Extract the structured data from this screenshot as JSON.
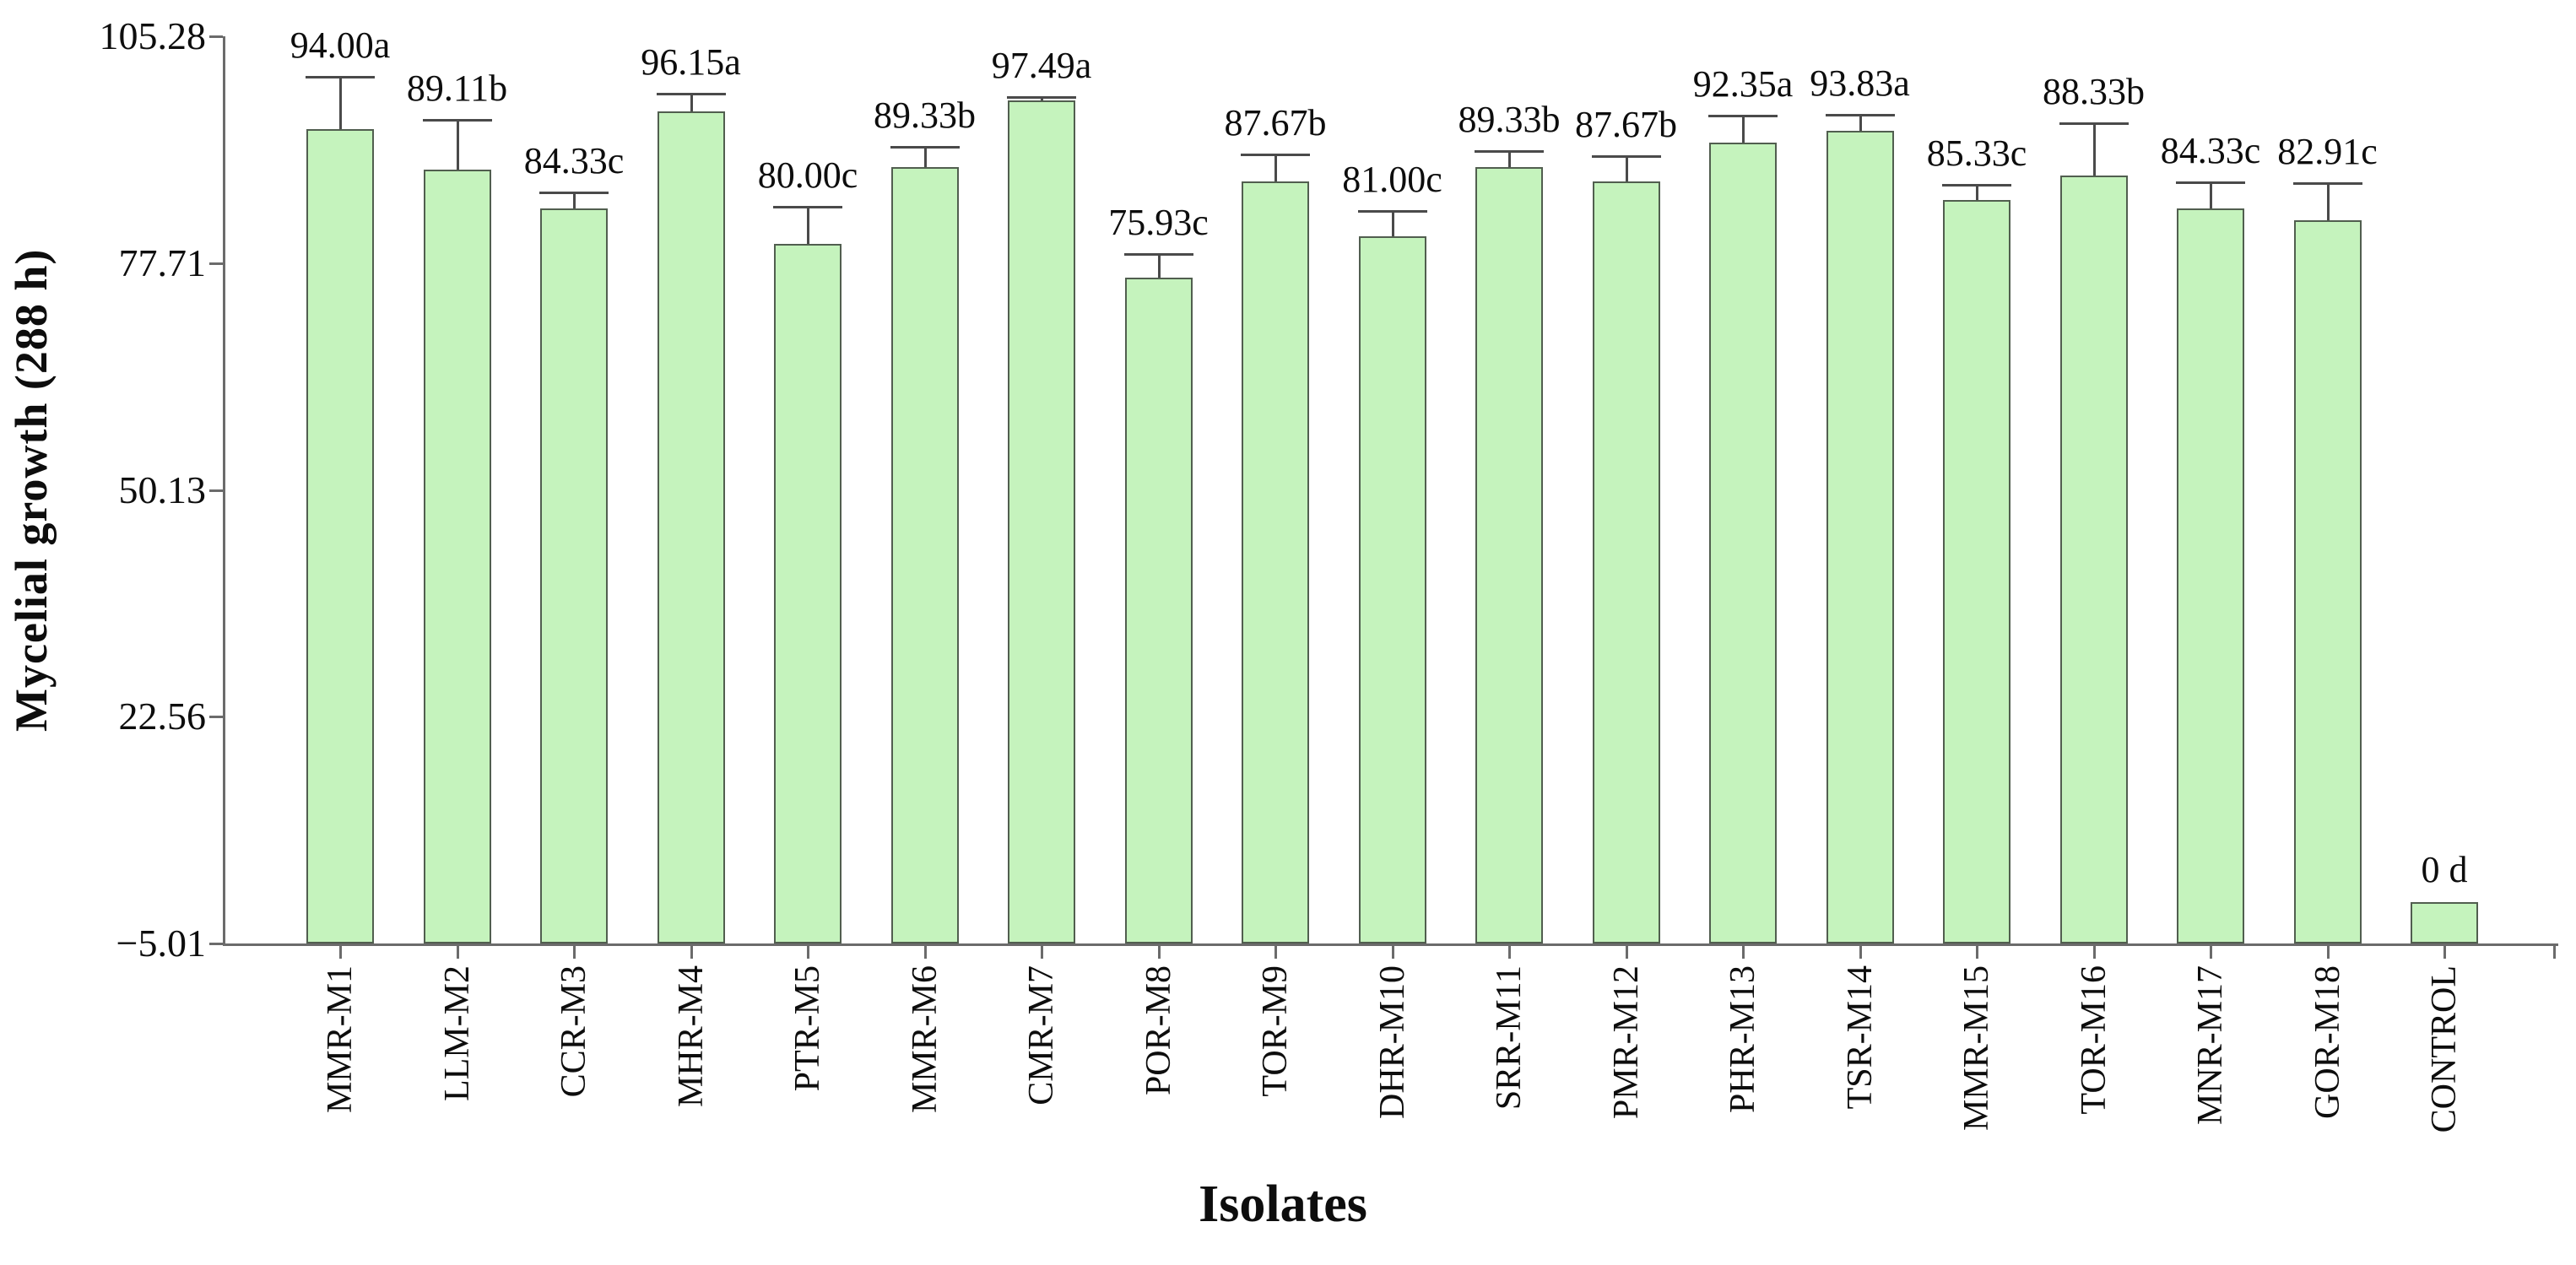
{
  "chart_data": {
    "type": "bar",
    "title": "",
    "xlabel": "Isolates",
    "ylabel": "Mycelial growth (288 h)",
    "ylim": [
      -5.01,
      105.28
    ],
    "grid": false,
    "legend": "none",
    "ytick_values": [
      105.28,
      77.71,
      50.13,
      22.56,
      -5.01
    ],
    "ytick_labels": [
      "105.28",
      "77.71",
      "50.13",
      "22.56",
      "−5.01"
    ],
    "categories": [
      "MMR-M1",
      "LLM-M2",
      "CCR-M3",
      "MHR-M4",
      "PTR-M5",
      "MMR-M6",
      "CMR-M7",
      "POR-M8",
      "TOR-M9",
      "DHR-M10",
      "SRR-M11",
      "PMR-M12",
      "PHR-M13",
      "TSR-M14",
      "MMR-M15",
      "TOR-M16",
      "MNR-M17",
      "GOR-M18",
      "CONTROL"
    ],
    "values": [
      94.0,
      89.11,
      84.33,
      96.15,
      80.0,
      89.33,
      97.49,
      75.93,
      87.67,
      81.0,
      89.33,
      87.67,
      92.35,
      93.83,
      85.33,
      88.33,
      84.33,
      82.91,
      0
    ],
    "value_labels": [
      "94.00a",
      "89.11b",
      "84.33c",
      "96.15a",
      "80.00c",
      "89.33b",
      "97.49a",
      "75.93c",
      "87.67b",
      "81.00c",
      "89.33b",
      "87.67b",
      "92.35a",
      "93.83a",
      "85.33c",
      "88.33b",
      "84.33c",
      "82.91c",
      "0 d"
    ],
    "errors": [
      6.3,
      5.9,
      1.9,
      2.0,
      4.5,
      2.4,
      0.3,
      2.8,
      3.1,
      2.9,
      1.9,
      2.9,
      3.2,
      1.8,
      1.8,
      6.3,
      3.1,
      4.4,
      0
    ],
    "colors": {
      "bar_fill": "#c5f3bd",
      "bar_border": "#515e4f",
      "error_bar": "#4a4a4a",
      "axis": "#6b6b6b",
      "text": "#0d0d0d",
      "background": "#ffffff"
    }
  }
}
